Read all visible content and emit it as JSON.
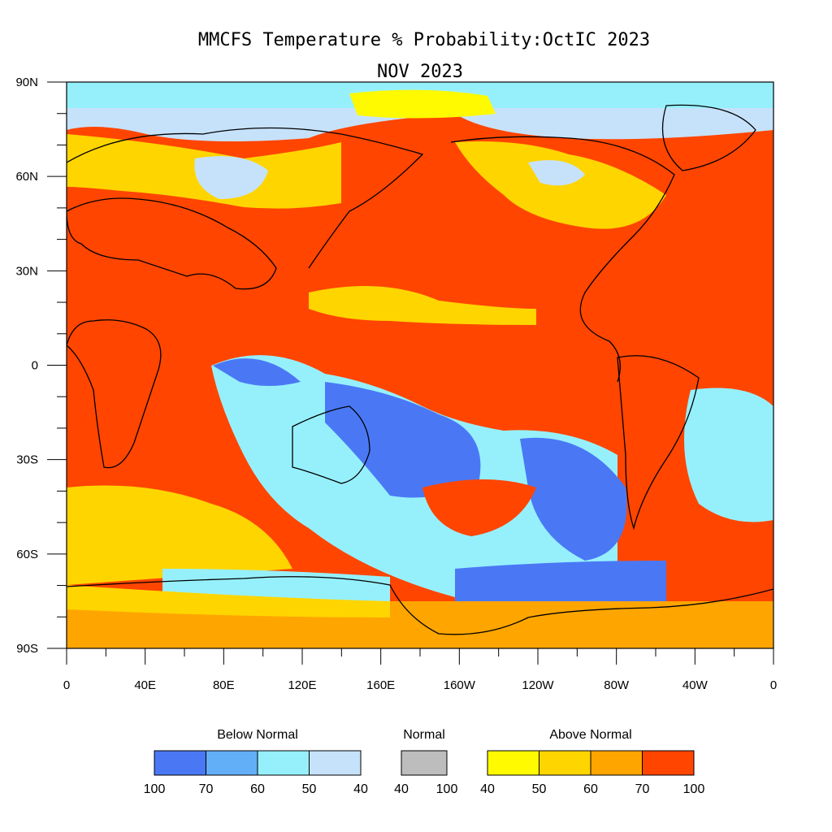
{
  "title": "MMCFS Temperature % Probability:OctIC 2023",
  "subtitle": "NOV 2023",
  "axes": {
    "y_ticks": [
      "90N",
      "60N",
      "30N",
      "0",
      "30S",
      "60S",
      "90S"
    ],
    "x_ticks": [
      "0",
      "40E",
      "80E",
      "120E",
      "160E",
      "160W",
      "120W",
      "80W",
      "40W",
      "0"
    ]
  },
  "legend": {
    "below": {
      "label": "Below Normal",
      "colors": [
        "#4a78f5",
        "#62aef7",
        "#96f0fc",
        "#c6e2fb"
      ],
      "ticks": [
        "100",
        "70",
        "60",
        "50",
        "40"
      ]
    },
    "normal": {
      "label": "Normal",
      "colors": [
        "#bdbdbd"
      ],
      "ticks": [
        "40",
        "100"
      ]
    },
    "above": {
      "label": "Above Normal",
      "colors": [
        "#fffa00",
        "#ffd500",
        "#ffa500",
        "#ff4500"
      ],
      "ticks": [
        "40",
        "50",
        "60",
        "70",
        "100"
      ]
    }
  }
}
